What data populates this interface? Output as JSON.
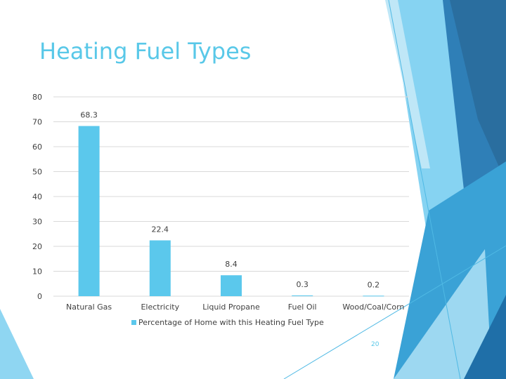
{
  "slide": {
    "title": "Heating Fuel Types",
    "page_number": "20"
  },
  "colors": {
    "accent": "#5bc8ec",
    "title": "#59c8e8",
    "grid": "#d9d9d9",
    "text": "#404040"
  },
  "chart_data": {
    "type": "bar",
    "title": "",
    "categories": [
      "Natural Gas",
      "Electricity",
      "Liquid Propane",
      "Fuel Oil",
      "Wood/Coal/Corn"
    ],
    "series": [
      {
        "name": "Percentage of Home with this Heating Fuel Type",
        "values": [
          68.3,
          22.4,
          8.4,
          0.3,
          0.2
        ],
        "labels": [
          "68.3",
          "22.4",
          "8.4",
          "0.3",
          "0.2"
        ]
      }
    ],
    "ylim": [
      0,
      80
    ],
    "yticks": [
      0,
      10,
      20,
      30,
      40,
      50,
      60,
      70,
      80
    ],
    "xlabel": "",
    "ylabel": "",
    "grid": true,
    "legend_position": "bottom"
  }
}
